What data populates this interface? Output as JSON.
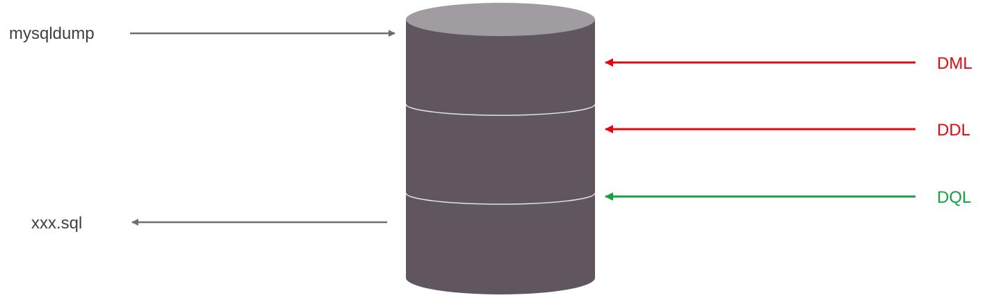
{
  "labels": {
    "mysqldump": "mysqldump",
    "xxx_sql": "xxx.sql",
    "dml": "DML",
    "ddl": "DDL",
    "dql": "DQL"
  },
  "colors": {
    "cylinder_body": "#605660",
    "cylinder_top": "#a19ca1",
    "band_line": "#e6e2e6",
    "gray_arrow": "#6e6e6e",
    "gray_text": "#404040",
    "red": "#e30613",
    "green": "#14a03c"
  }
}
